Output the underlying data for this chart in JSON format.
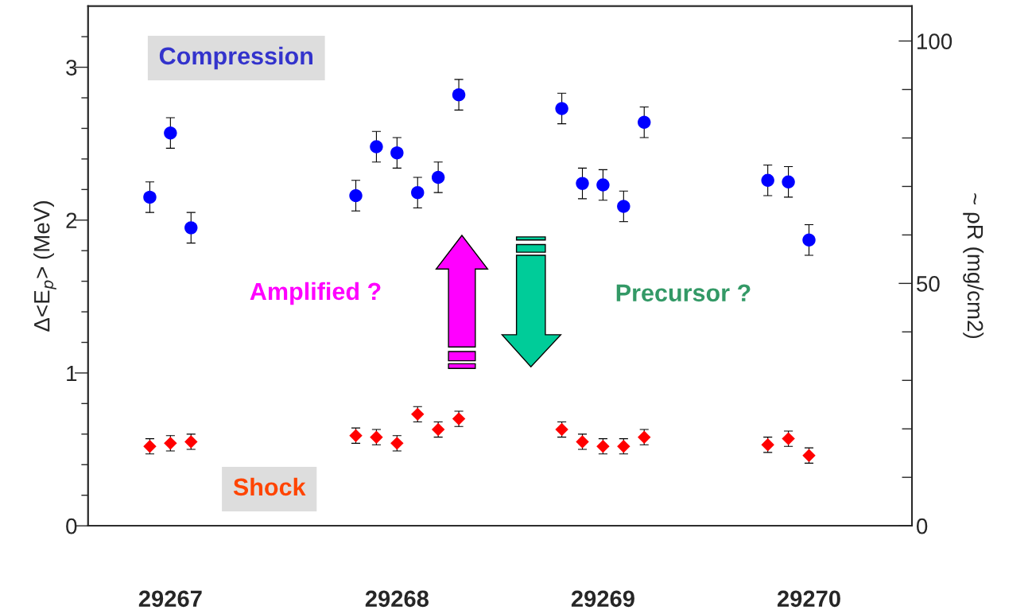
{
  "chart_data": {
    "type": "scatter",
    "ylabel": "Δ<E$_{p}$> (MeV)",
    "y2label": "~ ρR (mg/cm2)",
    "categories": [
      null,
      null,
      null,
      "29267",
      null,
      null,
      null,
      null,
      null,
      null,
      null,
      null,
      null,
      null,
      "29268",
      null,
      null,
      null,
      null,
      null,
      null,
      null,
      null,
      null,
      "29269",
      null,
      null,
      null,
      null,
      null,
      null,
      null,
      null,
      null,
      "29270",
      null,
      null,
      null,
      null
    ],
    "ylim": [
      0,
      3.4
    ],
    "yticks": [
      0,
      {
        "value": 0.2,
        "label": null
      },
      {
        "value": 0.4,
        "label": null
      },
      {
        "value": 0.6,
        "label": null
      },
      {
        "value": 0.8,
        "label": null
      },
      1,
      {
        "value": 1.2,
        "label": null
      },
      {
        "value": 1.4,
        "label": null
      },
      {
        "value": 1.6,
        "label": null
      },
      {
        "value": 1.8,
        "label": null
      },
      2,
      {
        "value": 2.2,
        "label": null
      },
      {
        "value": 2.4,
        "label": null
      },
      {
        "value": 2.6,
        "label": null
      },
      {
        "value": 2.8,
        "label": null
      },
      3,
      {
        "value": 3.2,
        "label": null
      }
    ],
    "y2lim": [
      0,
      107.2
    ],
    "y2ticks": [
      0,
      {
        "value": 10,
        "label": null
      },
      {
        "value": 20,
        "label": null
      },
      {
        "value": 30,
        "label": null
      },
      {
        "value": 40,
        "label": null
      },
      50,
      {
        "value": 60,
        "label": null
      },
      {
        "value": 70,
        "label": null
      },
      {
        "value": 80,
        "label": null
      },
      {
        "value": 90,
        "label": null
      },
      100
    ],
    "series": [
      {
        "color": "#0000ff",
        "marker": "circle",
        "values": [
          null,
          null,
          2.15,
          2.57,
          1.95,
          null,
          null,
          null,
          null,
          null,
          null,
          null,
          2.16,
          2.48,
          2.44,
          2.18,
          2.28,
          2.82,
          null,
          null,
          null,
          null,
          2.73,
          2.24,
          2.23,
          2.09,
          2.64,
          null,
          null,
          null,
          null,
          null,
          2.26,
          2.25,
          1.87,
          null,
          null,
          null,
          null
        ],
        "errors": [
          null,
          null,
          0.1,
          0.1,
          0.1,
          null,
          null,
          null,
          null,
          null,
          null,
          null,
          0.1,
          0.1,
          0.1,
          0.1,
          0.1,
          0.1,
          null,
          null,
          null,
          null,
          0.1,
          0.1,
          0.1,
          0.1,
          0.1,
          null,
          null,
          null,
          null,
          null,
          0.1,
          0.1,
          0.1,
          null,
          null,
          null,
          null
        ]
      },
      {
        "color": "#ff0000",
        "marker": "diamond",
        "values": [
          null,
          null,
          0.52,
          0.54,
          0.55,
          null,
          null,
          null,
          null,
          null,
          null,
          null,
          0.59,
          0.58,
          0.54,
          0.73,
          0.63,
          0.7,
          null,
          null,
          null,
          null,
          0.63,
          0.55,
          0.52,
          0.52,
          0.58,
          null,
          null,
          null,
          null,
          null,
          0.53,
          0.57,
          0.46,
          null,
          null,
          null,
          null
        ],
        "errors": [
          null,
          null,
          0.05,
          0.05,
          0.05,
          null,
          null,
          null,
          null,
          null,
          null,
          null,
          0.05,
          0.05,
          0.05,
          0.05,
          0.05,
          0.05,
          null,
          null,
          null,
          null,
          0.05,
          0.05,
          0.05,
          0.05,
          0.05,
          null,
          null,
          null,
          null,
          null,
          0.05,
          0.05,
          0.05,
          null,
          null,
          null,
          null
        ]
      }
    ],
    "annotations": [
      "Compression",
      "Shock",
      "Amplified ?",
      "Precursor ?"
    ],
    "grid": false
  }
}
